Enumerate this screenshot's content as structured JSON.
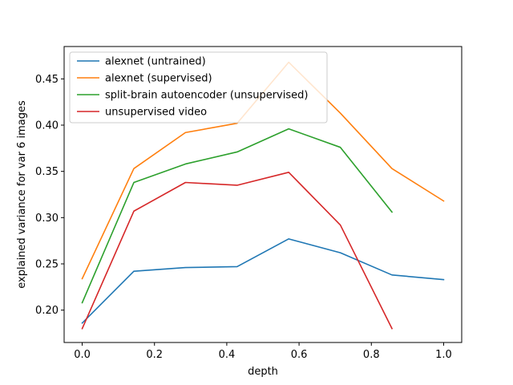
{
  "chart_data": {
    "type": "line",
    "title": "",
    "xlabel": "depth",
    "ylabel": "explained variance for var 6 images",
    "xlim": [
      -0.05,
      1.05
    ],
    "ylim": [
      0.165,
      0.485
    ],
    "xticks": [
      0.0,
      0.2,
      0.4,
      0.6,
      0.8,
      1.0
    ],
    "xtick_labels": [
      "0.0",
      "0.2",
      "0.4",
      "0.6",
      "0.8",
      "1.0"
    ],
    "yticks": [
      0.2,
      0.25,
      0.3,
      0.35,
      0.4,
      0.45
    ],
    "ytick_labels": [
      "0.20",
      "0.25",
      "0.30",
      "0.35",
      "0.40",
      "0.45"
    ],
    "grid": false,
    "legend_position": "top-left",
    "series": [
      {
        "name": "alexnet (untrained)",
        "color": "#1f77b4",
        "x": [
          0.0,
          0.1429,
          0.2857,
          0.4286,
          0.5714,
          0.7143,
          0.8571,
          1.0
        ],
        "y": [
          0.186,
          0.242,
          0.246,
          0.247,
          0.277,
          0.262,
          0.238,
          0.233
        ]
      },
      {
        "name": "alexnet (supervised)",
        "color": "#ff7f0e",
        "x": [
          0.0,
          0.1429,
          0.2857,
          0.4286,
          0.5714,
          0.7143,
          0.8571,
          1.0
        ],
        "y": [
          0.234,
          0.353,
          0.392,
          0.402,
          0.468,
          0.413,
          0.353,
          0.318
        ]
      },
      {
        "name": "split-brain autoencoder (unsupervised)",
        "color": "#2ca02c",
        "x": [
          0.0,
          0.1429,
          0.2857,
          0.4286,
          0.5714,
          0.7143,
          0.8571
        ],
        "y": [
          0.208,
          0.338,
          0.358,
          0.371,
          0.396,
          0.376,
          0.306
        ]
      },
      {
        "name": "unsupervised video",
        "color": "#d62728",
        "x": [
          0.0,
          0.1429,
          0.2857,
          0.4286,
          0.5714,
          0.7143,
          0.8571
        ],
        "y": [
          0.18,
          0.307,
          0.338,
          0.335,
          0.349,
          0.292,
          0.18
        ]
      }
    ]
  }
}
